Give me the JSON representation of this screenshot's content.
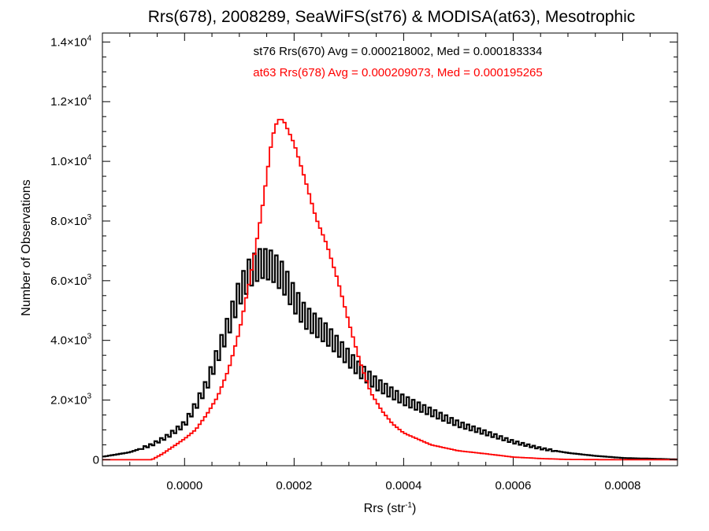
{
  "chart_data": {
    "type": "line",
    "title": "Rrs(678), 2008289, SeaWiFS(st76) & MODISA(at63), Mesotrophic",
    "xlabel_base": "Rrs (str",
    "xlabel_sup": "-1",
    "xlabel_close": ")",
    "ylabel": "Number of Observations",
    "xlim": [
      -0.00015,
      0.0009
    ],
    "ylim": [
      -200,
      14300
    ],
    "grid": false,
    "x_ticks": [
      {
        "value": 0.0,
        "label": "0.0000"
      },
      {
        "value": 0.0002,
        "label": "0.0002"
      },
      {
        "value": 0.0004,
        "label": "0.0004"
      },
      {
        "value": 0.0006,
        "label": "0.0006"
      },
      {
        "value": 0.0008,
        "label": "0.0008"
      }
    ],
    "y_ticks": [
      {
        "value": 0,
        "mant": "0",
        "exp": ""
      },
      {
        "value": 2000,
        "mant": "2.0×10",
        "exp": "3"
      },
      {
        "value": 4000,
        "mant": "4.0×10",
        "exp": "3"
      },
      {
        "value": 6000,
        "mant": "6.0×10",
        "exp": "3"
      },
      {
        "value": 8000,
        "mant": "8.0×10",
        "exp": "3"
      },
      {
        "value": 10000,
        "mant": "1.0×10",
        "exp": "4"
      },
      {
        "value": 12000,
        "mant": "1.2×10",
        "exp": "4"
      },
      {
        "value": 14000,
        "mant": "1.4×10",
        "exp": "4"
      }
    ],
    "annotations": [
      {
        "text": "st76 Rrs(670) Avg = 0.000218002, Med = 0.000183334",
        "color": "#000000"
      },
      {
        "text": "at63 Rrs(678) Avg = 0.000209073, Med = 0.000195265",
        "color": "#ff0000"
      }
    ],
    "series": [
      {
        "color": "#000000",
        "x": [
          -0.00015,
          -0.0001,
          -6e-05,
          -3e-05,
          0.0,
          2e-05,
          4e-05,
          6e-05,
          8e-05,
          0.0001,
          0.00012,
          0.00014,
          0.00016,
          0.00018,
          0.0002,
          0.00022,
          0.00024,
          0.00026,
          0.00028,
          0.0003,
          0.00032,
          0.00035,
          0.0004,
          0.00045,
          0.0005,
          0.00055,
          0.0006,
          0.00065,
          0.0007,
          0.00075,
          0.0008,
          0.0009
        ],
        "y": [
          100,
          250,
          500,
          800,
          1200,
          1800,
          2500,
          3500,
          4500,
          5600,
          6300,
          6600,
          6500,
          6100,
          5400,
          4800,
          4500,
          4200,
          3800,
          3400,
          3000,
          2550,
          2000,
          1600,
          1200,
          900,
          600,
          380,
          230,
          130,
          60,
          10
        ],
        "jitter": true
      },
      {
        "color": "#ff0000",
        "x": [
          -0.00015,
          -6e-05,
          -4e-05,
          -2e-05,
          0.0,
          2e-05,
          4e-05,
          6e-05,
          8e-05,
          0.0001,
          0.00012,
          0.00014,
          0.00016,
          0.00017,
          0.00018,
          0.00019,
          0.0002,
          0.00022,
          0.00024,
          0.00026,
          0.00028,
          0.0003,
          0.00032,
          0.00034,
          0.00036,
          0.00038,
          0.0004,
          0.00045,
          0.0005,
          0.00055,
          0.0006,
          0.00065,
          0.0007,
          0.0008,
          0.0009
        ],
        "y": [
          0,
          0,
          200,
          450,
          700,
          1000,
          1500,
          2100,
          3000,
          4300,
          6100,
          8200,
          10800,
          11400,
          11400,
          11000,
          10600,
          9400,
          8100,
          7200,
          6000,
          4600,
          3300,
          2250,
          1650,
          1200,
          900,
          500,
          300,
          200,
          90,
          40,
          10,
          0,
          0
        ],
        "jitter": false
      }
    ]
  }
}
